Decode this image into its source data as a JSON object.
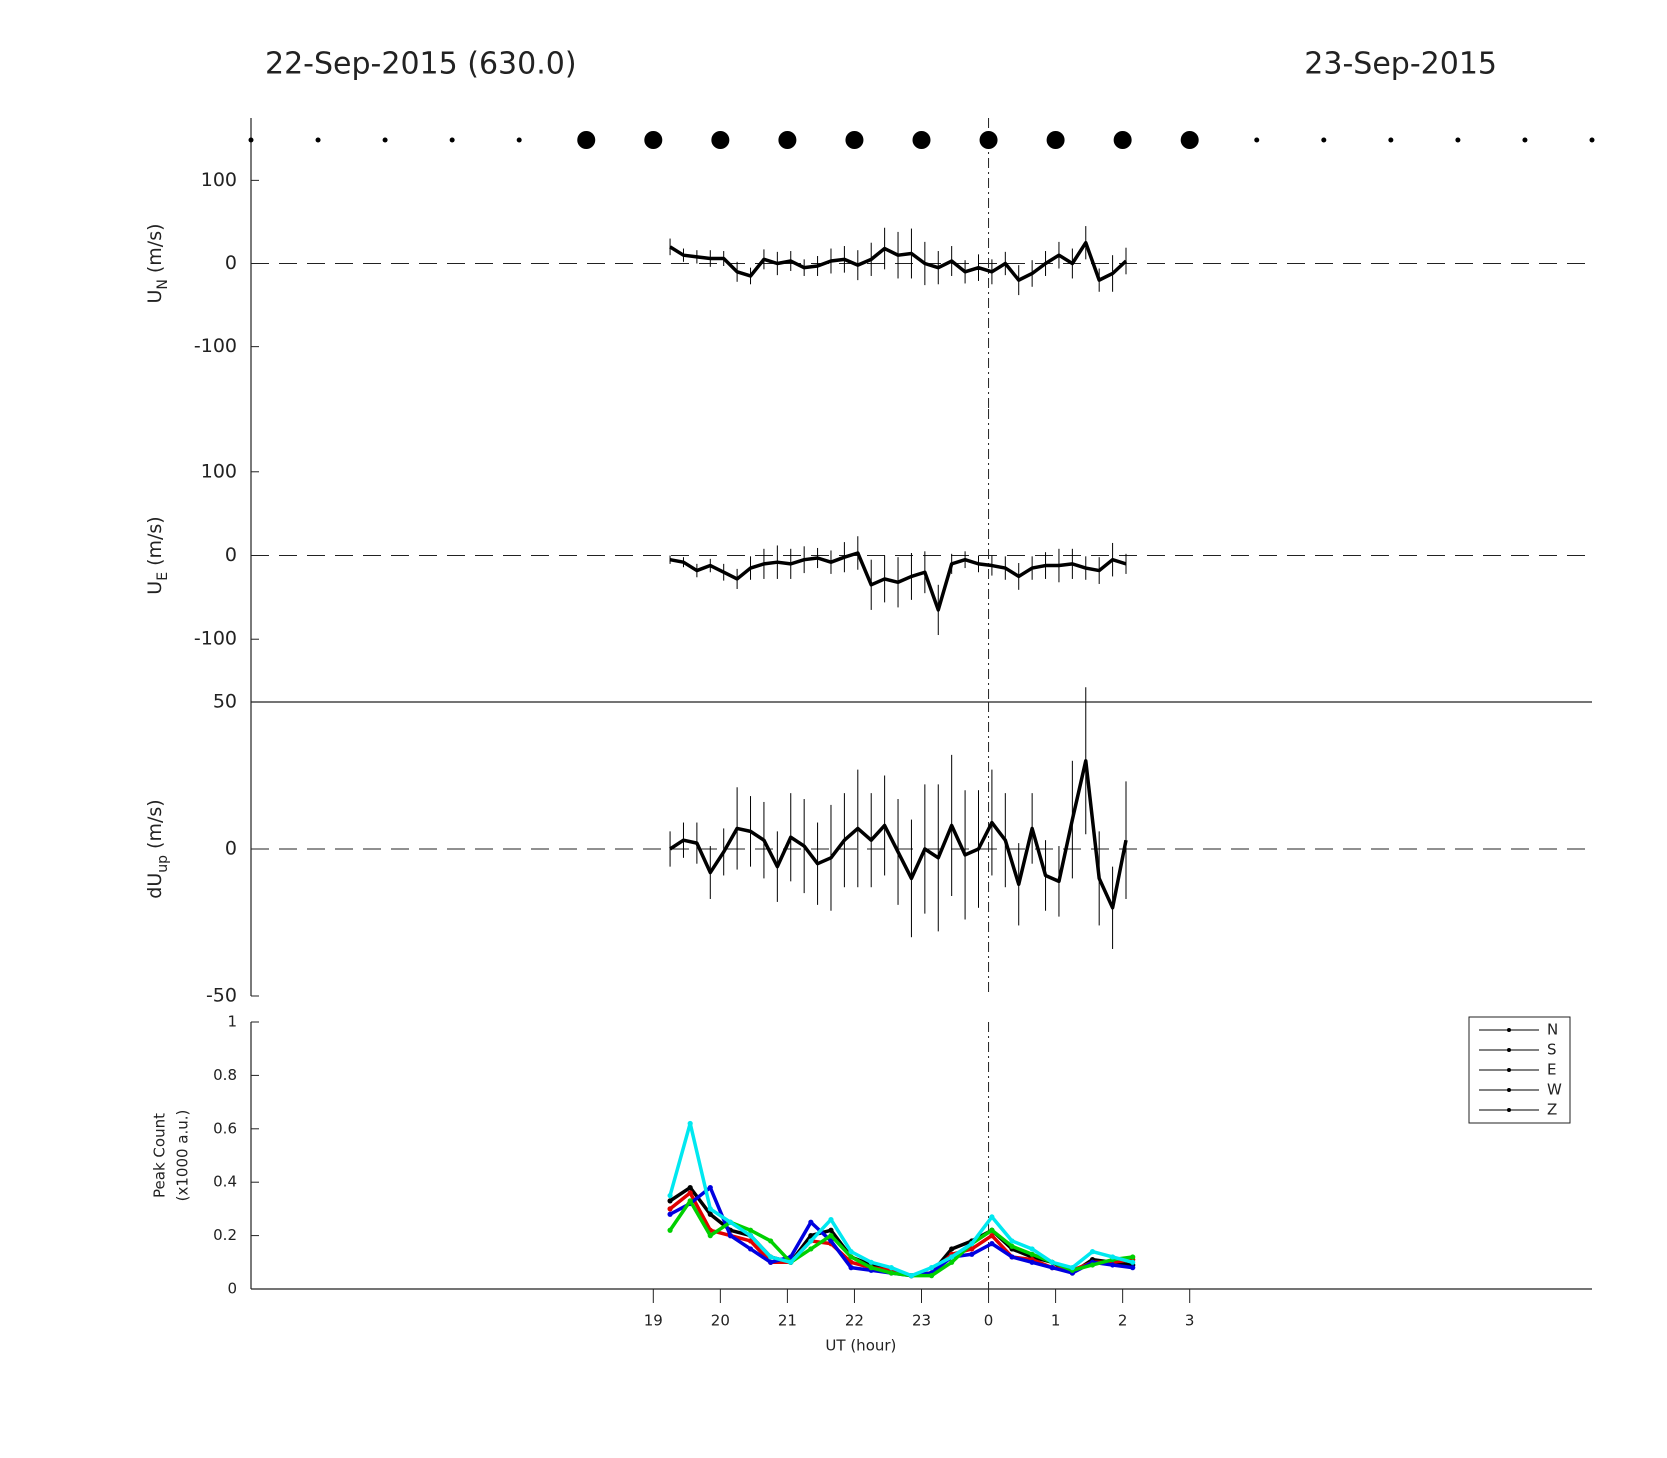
{
  "chart_data": [
    {
      "type": "line",
      "title": "22-Sep-2015 (630.0)",
      "title_right": "23-Sep-2015",
      "markers_small": [
        13,
        14,
        15,
        16,
        17,
        28,
        29,
        30,
        31,
        32,
        33
      ],
      "markers_large": [
        18,
        19,
        20,
        21,
        22,
        23,
        24,
        25,
        26,
        27
      ],
      "ylabel": {
        "base": "U",
        "sub": "N",
        "unit": "(m/s)"
      },
      "xlim": [
        13,
        33
      ],
      "ylim": [
        -175,
        175
      ],
      "yticks": [
        -100,
        0,
        100
      ],
      "zero_line": true,
      "vline": 24,
      "color": "#000000",
      "x": [
        19.25,
        19.45,
        19.65,
        19.85,
        20.05,
        20.25,
        20.45,
        20.65,
        20.85,
        21.05,
        21.25,
        21.45,
        21.65,
        21.85,
        22.05,
        22.25,
        22.45,
        22.65,
        22.85,
        23.05,
        23.25,
        23.45,
        23.65,
        23.85,
        24.05,
        24.25,
        24.45,
        24.65,
        24.85,
        25.05,
        25.25,
        25.45,
        25.65,
        25.85,
        26.05
      ],
      "values": [
        20,
        10,
        8,
        6,
        6,
        -10,
        -15,
        5,
        0,
        3,
        -5,
        -3,
        3,
        5,
        -2,
        5,
        18,
        10,
        12,
        0,
        -5,
        3,
        -10,
        -5,
        -10,
        0,
        -20,
        -12,
        0,
        10,
        0,
        25,
        -20,
        -12,
        3
      ],
      "errors": [
        10,
        8,
        8,
        10,
        9,
        12,
        10,
        12,
        14,
        12,
        10,
        12,
        15,
        16,
        18,
        20,
        25,
        28,
        30,
        26,
        20,
        18,
        14,
        16,
        15,
        14,
        18,
        16,
        15,
        16,
        18,
        20,
        14,
        22,
        16
      ]
    },
    {
      "type": "line",
      "ylabel": {
        "base": "U",
        "sub": "E",
        "unit": "(m/s)"
      },
      "xlim": [
        13,
        33
      ],
      "ylim": [
        -175,
        175
      ],
      "yticks": [
        -100,
        0,
        100
      ],
      "zero_line": true,
      "vline": 24,
      "color": "#000000",
      "x": [
        19.25,
        19.45,
        19.65,
        19.85,
        20.05,
        20.25,
        20.45,
        20.65,
        20.85,
        21.05,
        21.25,
        21.45,
        21.65,
        21.85,
        22.05,
        22.25,
        22.45,
        22.65,
        22.85,
        23.05,
        23.25,
        23.45,
        23.65,
        23.85,
        24.05,
        24.25,
        24.45,
        24.65,
        24.85,
        25.05,
        25.25,
        25.45,
        25.65,
        25.85,
        26.05
      ],
      "values": [
        -5,
        -8,
        -18,
        -12,
        -20,
        -28,
        -15,
        -10,
        -8,
        -10,
        -5,
        -3,
        -8,
        -2,
        3,
        -35,
        -28,
        -32,
        -25,
        -20,
        -65,
        -10,
        -5,
        -10,
        -12,
        -15,
        -25,
        -15,
        -12,
        -12,
        -10,
        -15,
        -18,
        -5,
        -10
      ],
      "errors": [
        5,
        6,
        8,
        8,
        10,
        12,
        14,
        18,
        20,
        18,
        16,
        12,
        14,
        18,
        20,
        30,
        28,
        30,
        28,
        25,
        30,
        12,
        10,
        10,
        12,
        14,
        16,
        14,
        16,
        20,
        18,
        14,
        16,
        20,
        12
      ]
    },
    {
      "type": "line",
      "ylabel": {
        "base": "dU",
        "sub": "up",
        "unit": "(m/s)"
      },
      "xlim": [
        13,
        33
      ],
      "ylim": [
        -50,
        50
      ],
      "yticks": [
        -50,
        0,
        50
      ],
      "zero_line": true,
      "vline": 24,
      "top_border": true,
      "color": "#000000",
      "x": [
        19.25,
        19.45,
        19.65,
        19.85,
        20.05,
        20.25,
        20.45,
        20.65,
        20.85,
        21.05,
        21.25,
        21.45,
        21.65,
        21.85,
        22.05,
        22.25,
        22.45,
        22.65,
        22.85,
        23.05,
        23.25,
        23.45,
        23.65,
        23.85,
        24.05,
        24.25,
        24.45,
        24.65,
        24.85,
        25.05,
        25.25,
        25.45,
        25.65,
        25.85,
        26.05
      ],
      "values": [
        0,
        3,
        2,
        -8,
        -1,
        7,
        6,
        3,
        -6,
        4,
        1,
        -5,
        -3,
        3,
        7,
        3,
        8,
        -1,
        -10,
        0,
        -3,
        8,
        -2,
        0,
        9,
        3,
        -12,
        7,
        -9,
        -11,
        10,
        30,
        -10,
        -20,
        3
      ],
      "errors": [
        6,
        6,
        7,
        9,
        8,
        14,
        12,
        13,
        12,
        15,
        16,
        14,
        18,
        16,
        20,
        16,
        17,
        18,
        20,
        22,
        25,
        24,
        22,
        20,
        18,
        16,
        14,
        12,
        12,
        12,
        20,
        25,
        16,
        14,
        20
      ]
    },
    {
      "type": "line",
      "ylabel": [
        "Peak Count",
        "(x1000 a.u.)"
      ],
      "xlabel": "UT (hour)",
      "xlim": [
        13,
        33
      ],
      "ylim": [
        0,
        1
      ],
      "yticks": [
        0,
        0.2,
        0.4,
        0.6,
        0.8,
        1
      ],
      "zero_line": true,
      "vline": 24,
      "xticks": [
        19,
        20,
        21,
        22,
        23,
        {
          "value": 24,
          "label": "0"
        },
        {
          "value": 25,
          "label": "1"
        },
        {
          "value": 26,
          "label": "2"
        },
        {
          "value": 27,
          "label": "3"
        }
      ],
      "legend": "upper right",
      "legend_color": "#000000",
      "x": [
        19.25,
        19.55,
        19.85,
        20.15,
        20.45,
        20.75,
        21.05,
        21.35,
        21.65,
        21.95,
        22.25,
        22.55,
        22.85,
        23.15,
        23.45,
        23.75,
        24.05,
        24.35,
        24.65,
        24.95,
        25.25,
        25.55,
        25.85,
        26.15
      ],
      "series": [
        {
          "name": "N",
          "color": "#000000",
          "values": [
            0.33,
            0.38,
            0.28,
            0.22,
            0.2,
            0.12,
            0.1,
            0.2,
            0.22,
            0.12,
            0.09,
            0.07,
            0.05,
            0.06,
            0.15,
            0.18,
            0.22,
            0.15,
            0.12,
            0.1,
            0.06,
            0.11,
            0.1,
            0.09
          ]
        },
        {
          "name": "S",
          "color": "#e00000",
          "values": [
            0.3,
            0.36,
            0.22,
            0.2,
            0.18,
            0.1,
            0.1,
            0.18,
            0.17,
            0.1,
            0.08,
            0.07,
            0.05,
            0.06,
            0.13,
            0.15,
            0.2,
            0.12,
            0.11,
            0.08,
            0.07,
            0.1,
            0.1,
            0.11
          ]
        },
        {
          "name": "E",
          "color": "#0000e0",
          "values": [
            0.28,
            0.32,
            0.38,
            0.2,
            0.15,
            0.1,
            0.12,
            0.25,
            0.18,
            0.08,
            0.07,
            0.06,
            0.05,
            0.06,
            0.12,
            0.13,
            0.17,
            0.12,
            0.1,
            0.08,
            0.06,
            0.1,
            0.09,
            0.08
          ]
        },
        {
          "name": "W",
          "color": "#00d000",
          "values": [
            0.22,
            0.33,
            0.2,
            0.25,
            0.22,
            0.18,
            0.1,
            0.15,
            0.2,
            0.12,
            0.08,
            0.06,
            0.05,
            0.05,
            0.1,
            0.17,
            0.22,
            0.16,
            0.13,
            0.1,
            0.07,
            0.09,
            0.11,
            0.12
          ]
        },
        {
          "name": "Z",
          "color": "#00e8f0",
          "values": [
            0.35,
            0.62,
            0.3,
            0.25,
            0.2,
            0.12,
            0.1,
            0.18,
            0.26,
            0.14,
            0.1,
            0.08,
            0.05,
            0.08,
            0.12,
            0.17,
            0.27,
            0.18,
            0.15,
            0.1,
            0.08,
            0.14,
            0.12,
            0.1
          ]
        }
      ]
    }
  ]
}
